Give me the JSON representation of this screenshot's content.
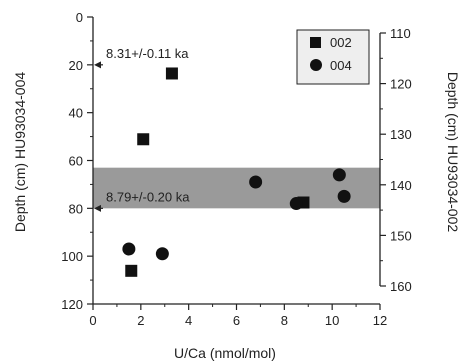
{
  "chart_data": {
    "type": "scatter",
    "xlabel": "U/Ca (nmol/mol)",
    "ylabel_left": "Depth (cm) HU93034-004",
    "ylabel_right": "Depth (cm) HU93034-002",
    "xlim": [
      0,
      12
    ],
    "x_ticks": [
      "0",
      "2",
      "4",
      "6",
      "8",
      "10",
      "12"
    ],
    "ylim_left": [
      0,
      120
    ],
    "y_ticks_left": [
      "0",
      "20",
      "40",
      "60",
      "80",
      "100",
      "120"
    ],
    "ylim_right": [
      110,
      160
    ],
    "y_ticks_right": [
      "110",
      "120",
      "130",
      "140",
      "150",
      "160"
    ],
    "y_inverted": true,
    "grid": false,
    "legend_position": "top-right",
    "shaded_band": {
      "y_from": 63,
      "y_to": 80,
      "color": "#9a9a9a"
    },
    "annotations": [
      {
        "text": "8.31+/-0.11 ka",
        "y": 20
      },
      {
        "text": "8.79+/-0.20 ka",
        "y": 80
      }
    ],
    "series": [
      {
        "name": "002",
        "marker": "square",
        "axis": "right",
        "x": [
          3.3,
          2.1,
          8.8,
          1.6
        ],
        "y": [
          118,
          131,
          143.5,
          157
        ]
      },
      {
        "name": "004",
        "marker": "circle",
        "axis": "left",
        "x": [
          6.8,
          8.5,
          10.3,
          10.5,
          1.5,
          2.9
        ],
        "y": [
          69,
          78,
          66,
          75,
          97,
          99
        ]
      }
    ]
  }
}
